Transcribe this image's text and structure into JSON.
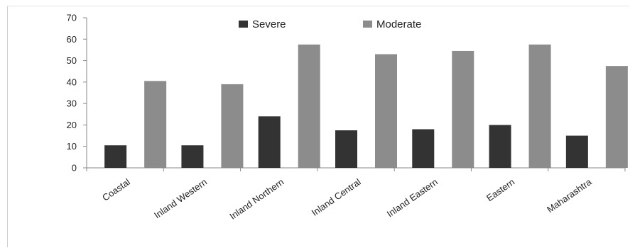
{
  "chart_data": {
    "type": "bar",
    "title": "",
    "xlabel": "",
    "ylabel": "",
    "categories": [
      "Coastal",
      "Inland Western",
      "Inland Northern",
      "Inland Central",
      "Inland Eastern",
      "Eastern",
      "Maharashtra"
    ],
    "series": [
      {
        "name": "Severe",
        "color": "#333333",
        "values": [
          10.5,
          10.5,
          24,
          17.5,
          18,
          20,
          15
        ]
      },
      {
        "name": "Moderate",
        "color": "#8c8c8c",
        "values": [
          40.5,
          39,
          57.5,
          53,
          54.5,
          57.5,
          47.5
        ]
      }
    ],
    "ylim": [
      0,
      70
    ],
    "yticks": [
      0,
      10,
      20,
      30,
      40,
      50,
      60,
      70
    ],
    "grid": false,
    "legend_position": "top"
  }
}
